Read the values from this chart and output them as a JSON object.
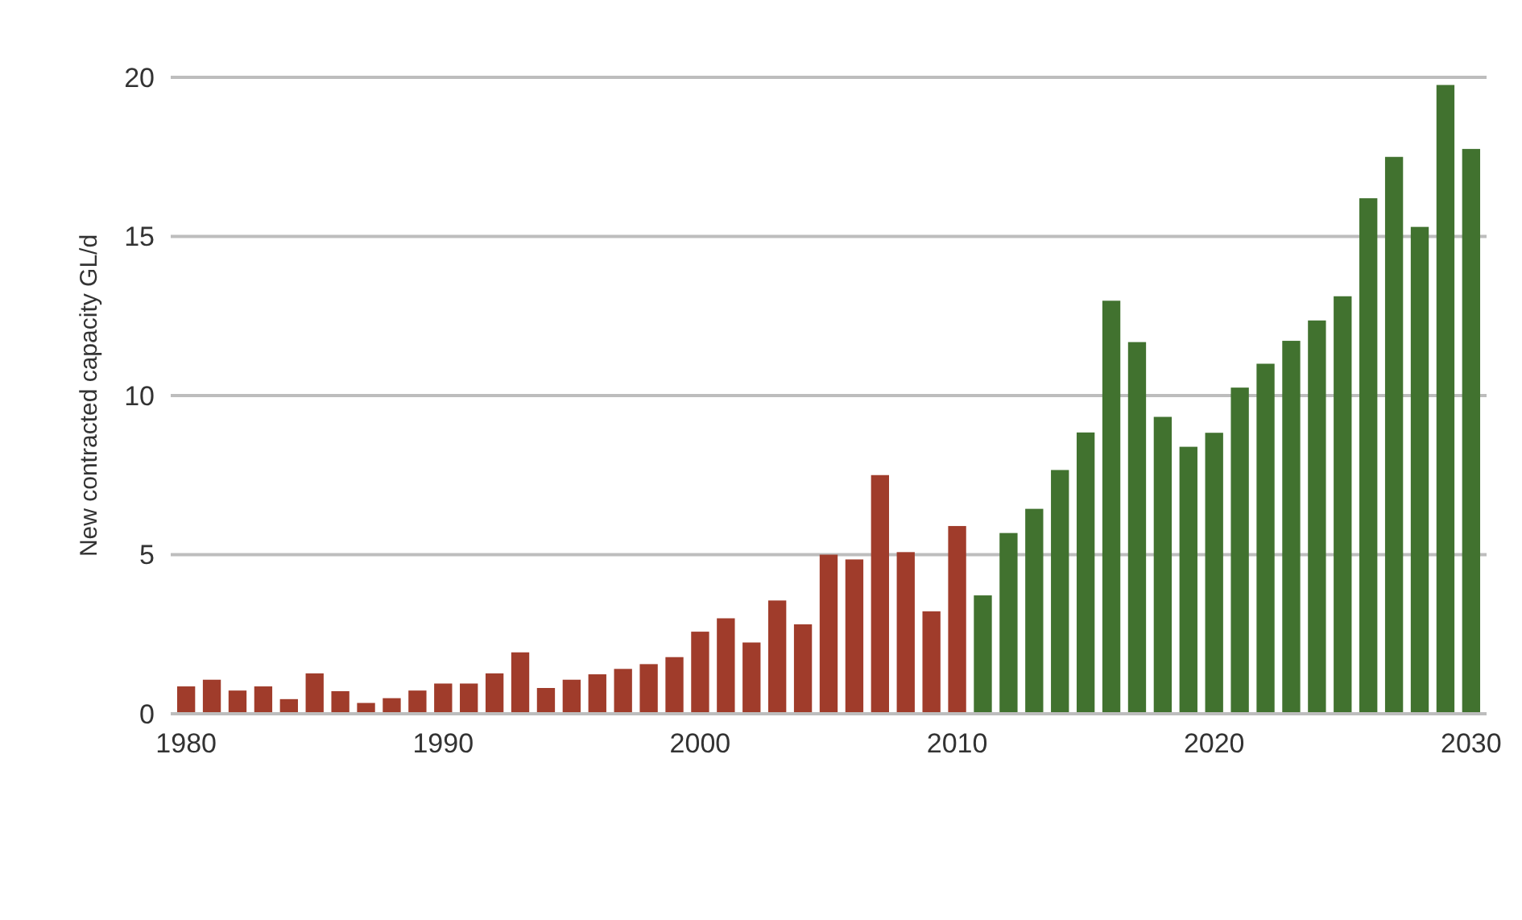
{
  "chart_data": {
    "type": "bar",
    "ylabel": "New contracted capacity GL/d",
    "xlim": [
      1979.4,
      2030.6
    ],
    "xticks": [
      1980,
      1990,
      2000,
      2010,
      2020,
      2030
    ],
    "ylim": [
      0,
      20
    ],
    "yticks": [
      0,
      5,
      10,
      15,
      20
    ],
    "grid": "y",
    "series": [
      {
        "color": "#a03c2b",
        "x": [
          1980,
          1981,
          1982,
          1983,
          1984,
          1985,
          1986,
          1987,
          1988,
          1989,
          1990,
          1991,
          1992,
          1993,
          1994,
          1995,
          1996,
          1997,
          1998,
          1999,
          2000,
          2001,
          2002,
          2003,
          2004,
          2005,
          2006,
          2007,
          2008,
          2009,
          2010
        ],
        "values": [
          0.86,
          1.07,
          0.73,
          0.86,
          0.46,
          1.27,
          0.71,
          0.34,
          0.49,
          0.73,
          0.95,
          0.95,
          1.27,
          1.93,
          0.81,
          1.07,
          1.24,
          1.41,
          1.56,
          1.78,
          2.58,
          3.0,
          2.24,
          3.56,
          2.81,
          5.0,
          4.85,
          7.5,
          5.08,
          3.22,
          5.9
        ]
      },
      {
        "color": "#41722f",
        "x": [
          2011,
          2012,
          2013,
          2014,
          2015,
          2016,
          2017,
          2018,
          2019,
          2020,
          2021,
          2022,
          2023,
          2024,
          2025,
          2026,
          2027,
          2028,
          2029,
          2030
        ],
        "values": [
          3.72,
          5.68,
          6.44,
          7.66,
          8.84,
          12.98,
          11.68,
          9.33,
          8.39,
          8.83,
          10.25,
          11.0,
          11.72,
          12.36,
          13.12,
          16.2,
          17.5,
          15.3,
          19.76,
          17.75
        ]
      }
    ]
  }
}
